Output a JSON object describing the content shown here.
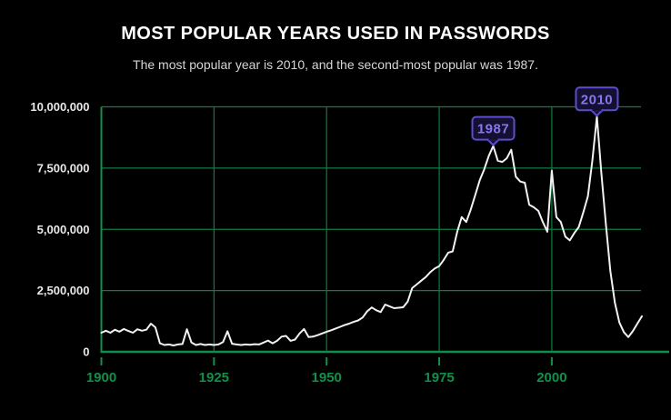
{
  "page": {
    "title": "MOST POPULAR YEARS USED IN PASSWORDS",
    "subtitle": "The most popular year is 2010, and the second-most popular was 1987."
  },
  "colors": {
    "background": "#000000",
    "grid_green": "#0c7e3d",
    "axis_green": "#0f9148",
    "tick_label_green": "#0f9148",
    "y_label": "#e8e8e8",
    "line_white": "#f2f2f2",
    "annotation_text": "#8478f0",
    "annotation_border": "#5b4dcb",
    "annotation_bg": "#151031",
    "title_white": "#ffffff",
    "subtitle_gray": "#d6d6d6"
  },
  "chart_data": {
    "type": "line",
    "title": "MOST POPULAR YEARS USED IN PASSWORDS",
    "subtitle": "The most popular year is 2010, and the second-most popular was 1987.",
    "xlabel": "",
    "ylabel": "",
    "grid": true,
    "legend": false,
    "xlim": [
      1900,
      2020
    ],
    "ylim": [
      0,
      10000000
    ],
    "x_step": 1,
    "x_ticks": [
      {
        "value": 1900,
        "label": "1900"
      },
      {
        "value": 1925,
        "label": "1925"
      },
      {
        "value": 1950,
        "label": "1950"
      },
      {
        "value": 1975,
        "label": "1975"
      },
      {
        "value": 2000,
        "label": "2000"
      }
    ],
    "y_ticks": [
      {
        "value": 0,
        "label": "0"
      },
      {
        "value": 2500000,
        "label": "2,500,000"
      },
      {
        "value": 5000000,
        "label": "5,000,000"
      },
      {
        "value": 7500000,
        "label": "7,500,000"
      },
      {
        "value": 10000000,
        "label": "10,000,000"
      }
    ],
    "values": [
      780000,
      860000,
      780000,
      900000,
      820000,
      930000,
      850000,
      780000,
      920000,
      860000,
      900000,
      1150000,
      1000000,
      350000,
      280000,
      300000,
      260000,
      300000,
      320000,
      920000,
      380000,
      280000,
      320000,
      280000,
      300000,
      280000,
      300000,
      400000,
      840000,
      330000,
      300000,
      280000,
      300000,
      290000,
      310000,
      300000,
      380000,
      460000,
      350000,
      450000,
      620000,
      650000,
      450000,
      500000,
      750000,
      930000,
      600000,
      620000,
      680000,
      750000,
      820000,
      880000,
      950000,
      1020000,
      1090000,
      1150000,
      1220000,
      1280000,
      1400000,
      1650000,
      1810000,
      1700000,
      1620000,
      1930000,
      1850000,
      1780000,
      1800000,
      1820000,
      2050000,
      2600000,
      2750000,
      2900000,
      3050000,
      3250000,
      3400000,
      3500000,
      3750000,
      4050000,
      4100000,
      4900000,
      5500000,
      5300000,
      5800000,
      6400000,
      7000000,
      7450000,
      8000000,
      8400000,
      7800000,
      7750000,
      7900000,
      8250000,
      7150000,
      6950000,
      6900000,
      6000000,
      5900000,
      5750000,
      5300000,
      4900000,
      7400000,
      5500000,
      5300000,
      4700000,
      4550000,
      4850000,
      5100000,
      5700000,
      6350000,
      7800000,
      9600000,
      7300000,
      5200000,
      3300000,
      2000000,
      1200000,
      800000,
      600000,
      850000,
      1150000,
      1450000
    ],
    "annotations": [
      {
        "label": "1987",
        "year": 1987,
        "value": 8400000
      },
      {
        "label": "2010",
        "year": 2010,
        "value": 9600000
      }
    ]
  }
}
